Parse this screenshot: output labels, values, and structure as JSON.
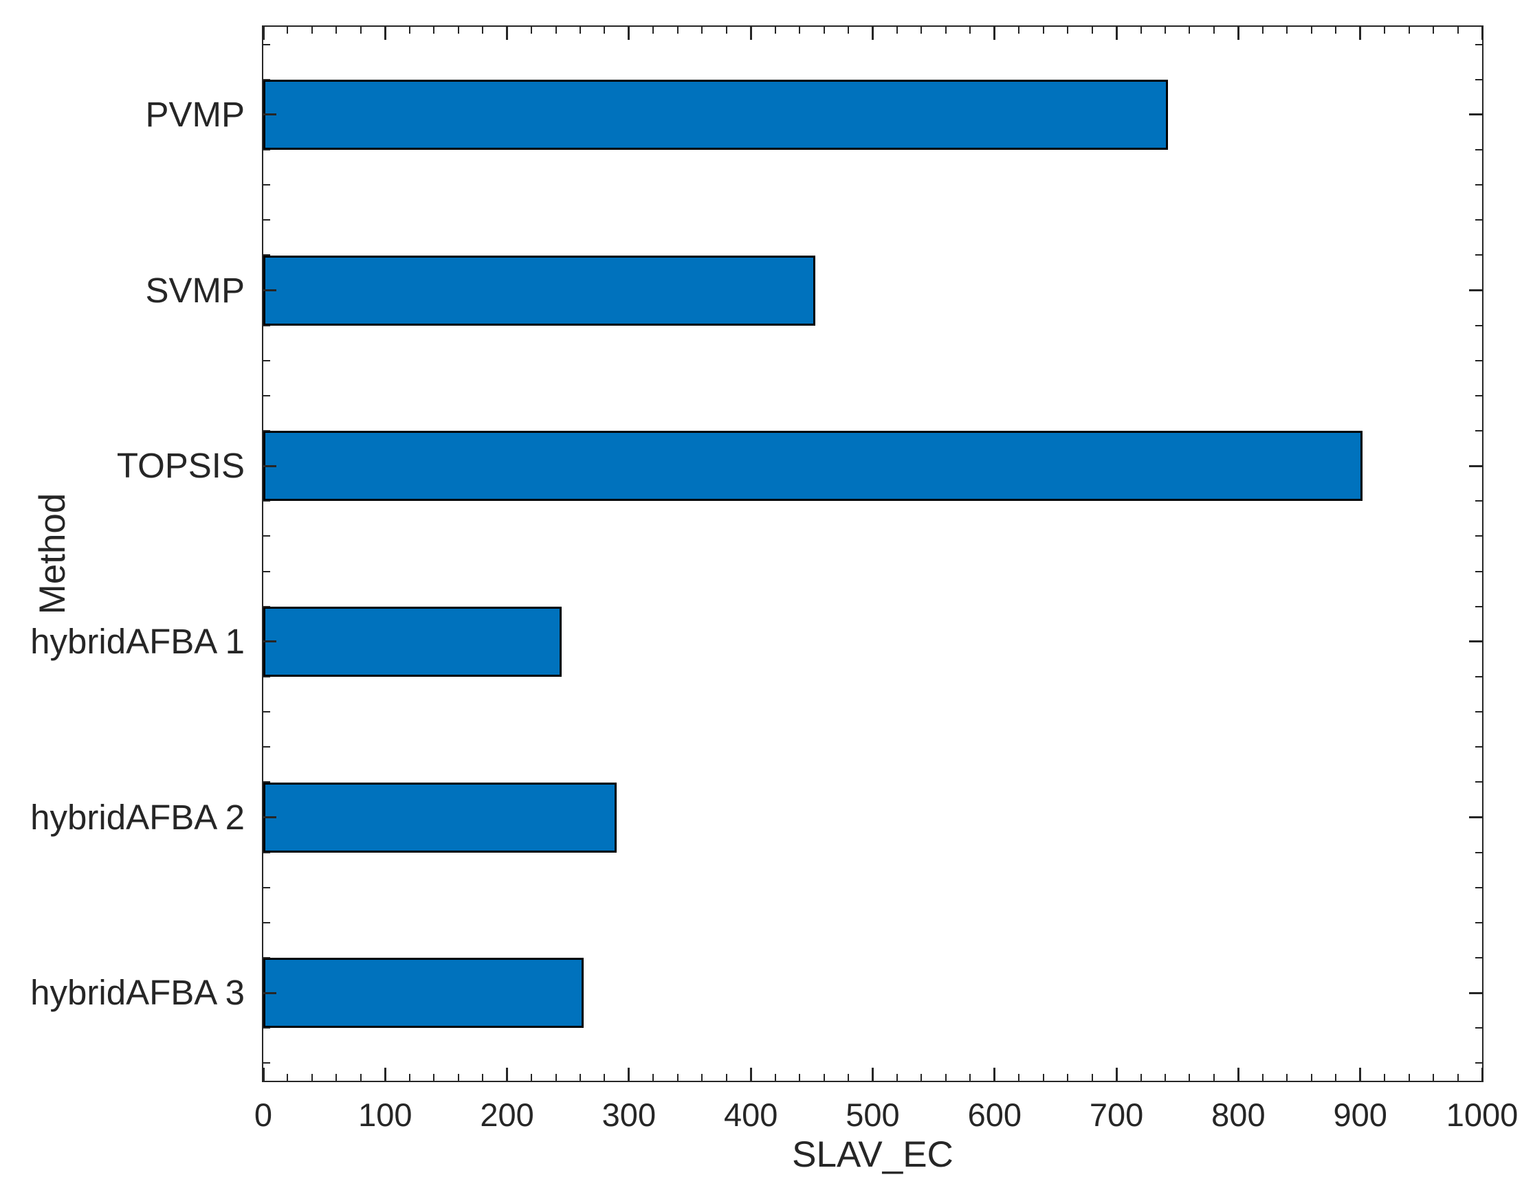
{
  "figure": {
    "background": "#ffffff"
  },
  "chart_data": {
    "type": "bar",
    "orientation": "horizontal",
    "title": "",
    "xlabel": "SLAV_EC",
    "ylabel": "Method",
    "categories": [
      "PVMP",
      "SVMP",
      "TOPSIS",
      "hybridAFBA 1",
      "hybridAFBA 2",
      "hybridAFBA 3"
    ],
    "values": [
      742,
      453,
      902,
      245,
      290,
      263
    ],
    "xlim": [
      0,
      1000
    ],
    "xticks": [
      0,
      100,
      200,
      300,
      400,
      500,
      600,
      700,
      800,
      900,
      1000
    ],
    "x_minor_tick_step": 20,
    "y_minor_ticks_per_category": [
      0.1,
      0.3,
      0.7,
      0.9
    ],
    "bar_width_fraction": 0.4,
    "grid": false,
    "legend": null,
    "box": true,
    "tick_direction": "in",
    "bar_color": "#0072BD",
    "bar_edge_color": "#000000",
    "axis_color": "#262626",
    "text_color": "#262626"
  }
}
